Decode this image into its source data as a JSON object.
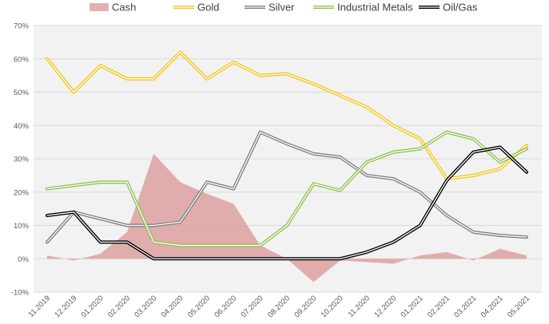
{
  "chart_data": {
    "type": "line",
    "title": "",
    "xlabel": "",
    "ylabel": "",
    "ylim": [
      -10,
      70
    ],
    "yticks": [
      -10,
      0,
      10,
      20,
      30,
      40,
      50,
      60,
      70
    ],
    "ytick_labels": [
      "-10%",
      "0%",
      "10%",
      "20%",
      "30%",
      "40%",
      "50%",
      "60%",
      "70%"
    ],
    "grid": true,
    "legend_position": "top",
    "categories": [
      "11.2019",
      "12.2019",
      "01.2020",
      "02.2020",
      "03.2020",
      "04.2020",
      "05.2020",
      "06.2020",
      "07.2020",
      "08.2020",
      "09.2020",
      "10.2020",
      "11.2020",
      "12.2020",
      "01.2021",
      "02.2021",
      "03.2021",
      "04.2021",
      "05.2021"
    ],
    "series": [
      {
        "name": "Cash",
        "kind": "area",
        "color": "#d99594",
        "values": [
          1,
          -0.5,
          1.5,
          8,
          31.5,
          23,
          19.5,
          16.5,
          4,
          0,
          -7,
          -0.5,
          -1,
          -1.5,
          1,
          2,
          -0.5,
          3,
          1
        ]
      },
      {
        "name": "Gold",
        "kind": "line",
        "color": "#f5c518",
        "values": [
          60,
          50,
          58,
          54,
          54,
          62,
          54,
          59,
          55,
          55.5,
          52.5,
          49,
          45.5,
          40,
          36,
          24,
          25,
          27,
          34
        ]
      },
      {
        "name": "Silver",
        "kind": "line",
        "color": "#808080",
        "values": [
          5,
          14,
          12,
          10,
          10,
          11,
          23,
          21,
          38,
          34.5,
          31.5,
          30.5,
          25,
          24,
          20,
          13,
          8,
          7,
          6.5
        ]
      },
      {
        "name": "Industrial Metals",
        "kind": "line",
        "color": "#92c050",
        "values": [
          21,
          22,
          23,
          23,
          5,
          4,
          4,
          4,
          4,
          10,
          22.5,
          20.5,
          29,
          32,
          33,
          38,
          36,
          29,
          33
        ]
      },
      {
        "name": "Oil/Gas",
        "kind": "line",
        "color": "#000000",
        "values": [
          13,
          14,
          5,
          5,
          0,
          0,
          0,
          0,
          0,
          0,
          0,
          0,
          2,
          5,
          10,
          23.5,
          32,
          33.5,
          26
        ]
      }
    ]
  }
}
